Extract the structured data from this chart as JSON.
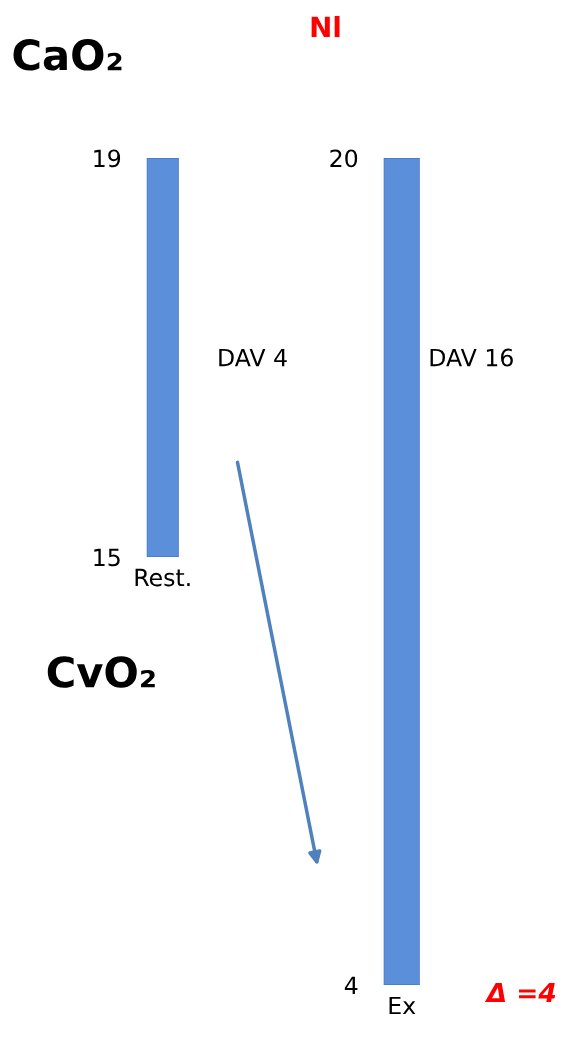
{
  "chart_data": [
    {
      "type": "bar",
      "categories": [
        "Rest."
      ],
      "base": [
        15
      ],
      "values": [
        4
      ],
      "color": "#5b8fd9",
      "ylim": [
        15,
        19
      ],
      "yticks": [
        15,
        19
      ],
      "annotations": [
        "CaO₂",
        "CvO₂",
        "DAV 4"
      ]
    },
    {
      "type": "bar",
      "title": "Nl",
      "categories": [
        "Ex"
      ],
      "base": [
        4
      ],
      "values": [
        16
      ],
      "color": "#5b8fd9",
      "ylim": [
        4,
        20
      ],
      "yticks": [
        4,
        20
      ],
      "annotations": [
        "DAV 16",
        "Δ =4"
      ]
    }
  ]
}
